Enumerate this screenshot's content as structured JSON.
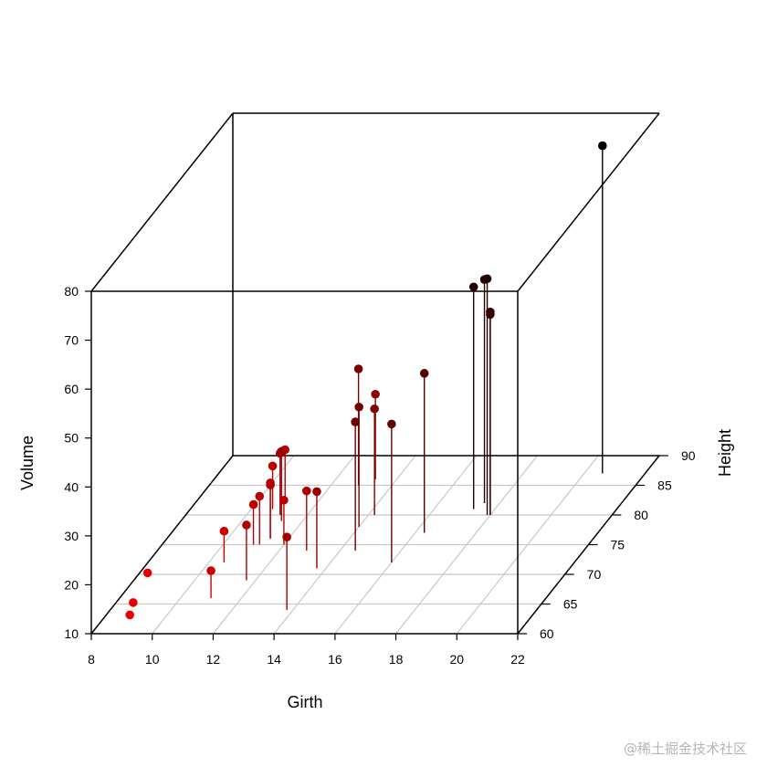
{
  "chart_data": {
    "type": "scatter3d",
    "title": "",
    "xlabel": "Girth",
    "ylabel": "Height",
    "zlabel": "Volume",
    "xlim": [
      8,
      22
    ],
    "ylim": [
      60,
      90
    ],
    "zlim": [
      10,
      80
    ],
    "x_ticks": [
      "8",
      "10",
      "12",
      "14",
      "16",
      "18",
      "20",
      "22"
    ],
    "y_ticks": [
      "60",
      "65",
      "70",
      "75",
      "80",
      "85",
      "90"
    ],
    "z_ticks": [
      "10",
      "20",
      "30",
      "40",
      "50",
      "60",
      "70",
      "80"
    ],
    "grid": true,
    "point_type": "h",
    "color_map": "volume (red = low, black = high)",
    "points": [
      {
        "girth": 8.3,
        "height": 70,
        "volume": 10.3
      },
      {
        "girth": 8.6,
        "height": 65,
        "volume": 10.3
      },
      {
        "girth": 8.8,
        "height": 63,
        "volume": 10.2
      },
      {
        "girth": 10.5,
        "height": 72,
        "volume": 16.4
      },
      {
        "girth": 10.7,
        "height": 81,
        "volume": 18.8
      },
      {
        "girth": 10.8,
        "height": 83,
        "volume": 19.7
      },
      {
        "girth": 11.0,
        "height": 66,
        "volume": 15.6
      },
      {
        "girth": 11.0,
        "height": 75,
        "volume": 18.2
      },
      {
        "girth": 11.1,
        "height": 80,
        "volume": 22.6
      },
      {
        "girth": 11.2,
        "height": 75,
        "volume": 19.9
      },
      {
        "girth": 11.3,
        "height": 79,
        "volume": 24.2
      },
      {
        "girth": 11.4,
        "height": 76,
        "volume": 21.0
      },
      {
        "girth": 11.4,
        "height": 76,
        "volume": 21.4
      },
      {
        "girth": 11.7,
        "height": 69,
        "volume": 21.3
      },
      {
        "girth": 12.0,
        "height": 75,
        "volume": 19.1
      },
      {
        "girth": 12.9,
        "height": 74,
        "volume": 22.2
      },
      {
        "girth": 12.9,
        "height": 85,
        "volume": 33.8
      },
      {
        "girth": 13.3,
        "height": 86,
        "volume": 27.4
      },
      {
        "girth": 13.7,
        "height": 71,
        "volume": 25.7
      },
      {
        "girth": 13.8,
        "height": 64,
        "volume": 24.9
      },
      {
        "girth": 14.0,
        "height": 78,
        "volume": 34.5
      },
      {
        "girth": 14.2,
        "height": 80,
        "volume": 31.7
      },
      {
        "girth": 14.5,
        "height": 74,
        "volume": 36.3
      },
      {
        "girth": 16.0,
        "height": 72,
        "volume": 38.3
      },
      {
        "girth": 16.3,
        "height": 77,
        "volume": 42.6
      },
      {
        "girth": 17.3,
        "height": 81,
        "volume": 55.4
      },
      {
        "girth": 17.5,
        "height": 82,
        "volume": 55.7
      },
      {
        "girth": 17.9,
        "height": 80,
        "volume": 58.3
      },
      {
        "girth": 18.0,
        "height": 80,
        "volume": 51.5
      },
      {
        "girth": 18.0,
        "height": 80,
        "volume": 51.0
      },
      {
        "girth": 20.6,
        "height": 87,
        "volume": 77.0
      }
    ]
  },
  "watermark": "@稀土掘金技术社区"
}
